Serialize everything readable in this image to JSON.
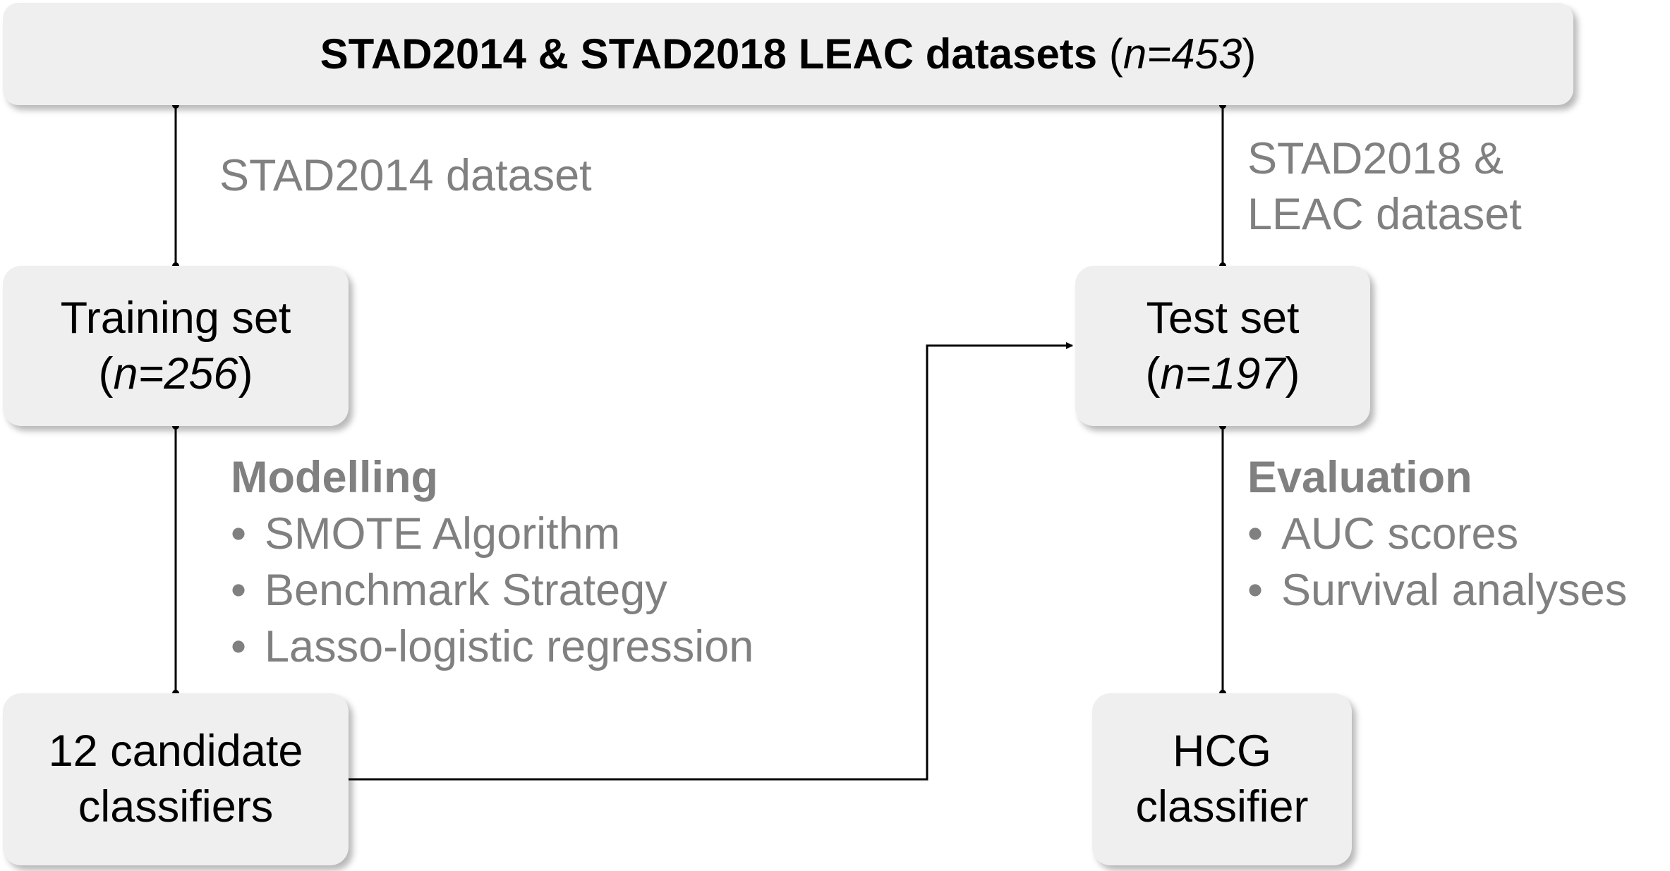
{
  "top": {
    "title_bold": "STAD2014 & STAD2018 LEAC datasets",
    "open_paren": "(",
    "n_value": "n=453",
    "close_paren": ")"
  },
  "left_split_label": "STAD2014 dataset",
  "right_split_label": [
    "STAD2018 &",
    "LEAC dataset"
  ],
  "training": {
    "line1": "Training set",
    "open_paren": "(",
    "n_value": "n=256",
    "close_paren": ")"
  },
  "test": {
    "line1": "Test set",
    "open_paren": "(",
    "n_value": "n=197",
    "close_paren": ")"
  },
  "modelling": {
    "heading": "Modelling",
    "bullet": "•",
    "items": [
      "SMOTE Algorithm",
      "Benchmark Strategy",
      "Lasso-logistic regression"
    ]
  },
  "evaluation": {
    "heading": "Evaluation",
    "bullet": "•",
    "items": [
      "AUC scores",
      "Survival analyses"
    ]
  },
  "candidates": {
    "line1": "12 candidate",
    "line2": "classifiers"
  },
  "hcg": {
    "line1": "HCG",
    "line2": "classifier"
  },
  "colors": {
    "box_fill": "#efefef",
    "gray_text": "#808080",
    "connector": "#000000"
  }
}
